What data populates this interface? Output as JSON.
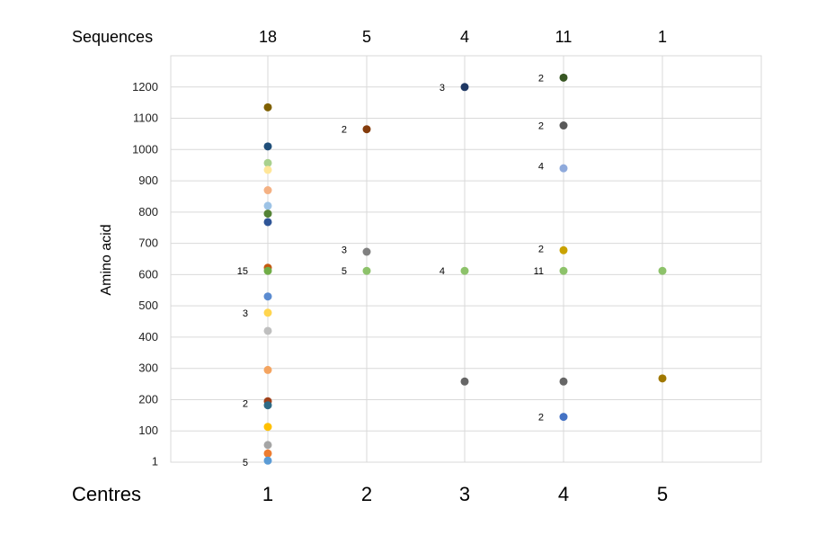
{
  "chart_data": {
    "type": "scatter",
    "title": "",
    "ylabel": "Amino acid",
    "xlabel": "Centres",
    "top_row_label": "Sequences",
    "ylim": [
      0,
      1300
    ],
    "yticks": [
      "1",
      "100",
      "200",
      "300",
      "400",
      "500",
      "600",
      "700",
      "800",
      "900",
      "1000",
      "1100",
      "1200"
    ],
    "ytick_values": [
      1,
      100,
      200,
      300,
      400,
      500,
      600,
      700,
      800,
      900,
      1000,
      1100,
      1200
    ],
    "x_categories": [
      "1",
      "2",
      "3",
      "4",
      "5"
    ],
    "sequence_counts": [
      "18",
      "5",
      "4",
      "11",
      "1"
    ],
    "grid": true,
    "points": [
      {
        "x": 1,
        "y": 1135,
        "color": "#7f6000"
      },
      {
        "x": 1,
        "y": 1010,
        "color": "#1f4e79"
      },
      {
        "x": 1,
        "y": 957,
        "color": "#a9d18e"
      },
      {
        "x": 1,
        "y": 935,
        "color": "#ffe699"
      },
      {
        "x": 1,
        "y": 870,
        "color": "#f4b183"
      },
      {
        "x": 1,
        "y": 820,
        "color": "#9dc3e6"
      },
      {
        "x": 1,
        "y": 795,
        "color": "#548235"
      },
      {
        "x": 1,
        "y": 768,
        "color": "#2f5597"
      },
      {
        "x": 1,
        "y": 622,
        "color": "#c55a11"
      },
      {
        "x": 1,
        "y": 612,
        "color": "#70ad47"
      },
      {
        "x": 1,
        "y": 530,
        "color": "#5b8bd0"
      },
      {
        "x": 1,
        "y": 478,
        "color": "#ffd54f"
      },
      {
        "x": 1,
        "y": 420,
        "color": "#bfbfbf"
      },
      {
        "x": 1,
        "y": 295,
        "color": "#f4a460"
      },
      {
        "x": 1,
        "y": 195,
        "color": "#a0411a"
      },
      {
        "x": 1,
        "y": 182,
        "color": "#2e6b87"
      },
      {
        "x": 1,
        "y": 113,
        "color": "#ffc000"
      },
      {
        "x": 1,
        "y": 55,
        "color": "#a5a5a5"
      },
      {
        "x": 1,
        "y": 28,
        "color": "#ed7d31"
      },
      {
        "x": 1,
        "y": 5,
        "color": "#5b9bd5"
      },
      {
        "x": 2,
        "y": 1065,
        "color": "#843c0c"
      },
      {
        "x": 2,
        "y": 673,
        "color": "#808080"
      },
      {
        "x": 2,
        "y": 612,
        "color": "#8dc26a"
      },
      {
        "x": 3,
        "y": 1200,
        "color": "#1f3864"
      },
      {
        "x": 3,
        "y": 612,
        "color": "#8dc26a"
      },
      {
        "x": 3,
        "y": 258,
        "color": "#666666"
      },
      {
        "x": 4,
        "y": 1230,
        "color": "#375623"
      },
      {
        "x": 4,
        "y": 1077,
        "color": "#595959"
      },
      {
        "x": 4,
        "y": 940,
        "color": "#8faadc"
      },
      {
        "x": 4,
        "y": 678,
        "color": "#c9a200"
      },
      {
        "x": 4,
        "y": 612,
        "color": "#8dc26a"
      },
      {
        "x": 4,
        "y": 258,
        "color": "#666666"
      },
      {
        "x": 4,
        "y": 145,
        "color": "#4472c4"
      },
      {
        "x": 5,
        "y": 612,
        "color": "#8dc26a"
      },
      {
        "x": 5,
        "y": 268,
        "color": "#a07800"
      }
    ],
    "annotations": [
      {
        "x": 1,
        "y": 612,
        "text": "15"
      },
      {
        "x": 1,
        "y": 478,
        "text": "3"
      },
      {
        "x": 1,
        "y": 188,
        "text": "2"
      },
      {
        "x": 1,
        "y": 0,
        "text": "5"
      },
      {
        "x": 2,
        "y": 1065,
        "text": "2"
      },
      {
        "x": 2,
        "y": 680,
        "text": "3"
      },
      {
        "x": 2,
        "y": 612,
        "text": "5"
      },
      {
        "x": 3,
        "y": 1200,
        "text": "3"
      },
      {
        "x": 3,
        "y": 612,
        "text": "4"
      },
      {
        "x": 4,
        "y": 1230,
        "text": "2"
      },
      {
        "x": 4,
        "y": 1077,
        "text": "2"
      },
      {
        "x": 4,
        "y": 948,
        "text": "4"
      },
      {
        "x": 4,
        "y": 683,
        "text": "2"
      },
      {
        "x": 4,
        "y": 612,
        "text": "11"
      },
      {
        "x": 4,
        "y": 145,
        "text": "2"
      }
    ]
  }
}
